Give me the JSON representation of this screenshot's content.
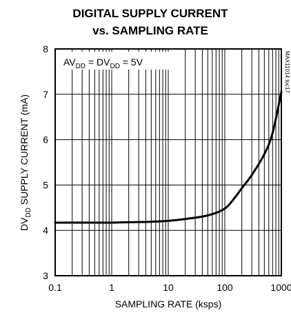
{
  "chart_data": {
    "type": "line",
    "title_line1": "DIGITAL SUPPLY CURRENT",
    "title_line2": "vs. SAMPLING RATE",
    "xlabel": "SAMPLING RATE (ksps)",
    "ylabel_main": "DV",
    "ylabel_sub": "DD",
    "ylabel_rest": " SUPPLY CURRENT (mA)",
    "x_scale": "log",
    "xlim": [
      0.1,
      1000
    ],
    "ylim": [
      3,
      8
    ],
    "x_ticks": [
      0.1,
      1,
      10,
      100,
      1000
    ],
    "x_tick_labels": [
      "0.1",
      "1",
      "10",
      "100",
      "1000"
    ],
    "y_ticks": [
      3,
      4,
      5,
      6,
      7,
      8
    ],
    "y_tick_labels": [
      "3",
      "4",
      "5",
      "6",
      "7",
      "8"
    ],
    "grid": true,
    "annotation": {
      "av": "AV",
      "av_sub": "DD",
      "eq1": " = DV",
      "dv_sub": "DD",
      "eq2": " = 5V"
    },
    "figure_code": "MAX11014 toc17",
    "series": [
      {
        "x": [
          0.1,
          0.2,
          0.5,
          1,
          2,
          5,
          10,
          20,
          50,
          100,
          150,
          200,
          300,
          500,
          700,
          1000
        ],
        "y": [
          4.17,
          4.17,
          4.17,
          4.17,
          4.18,
          4.19,
          4.21,
          4.25,
          4.33,
          4.48,
          4.72,
          4.93,
          5.22,
          5.68,
          6.15,
          7.05
        ]
      }
    ]
  }
}
